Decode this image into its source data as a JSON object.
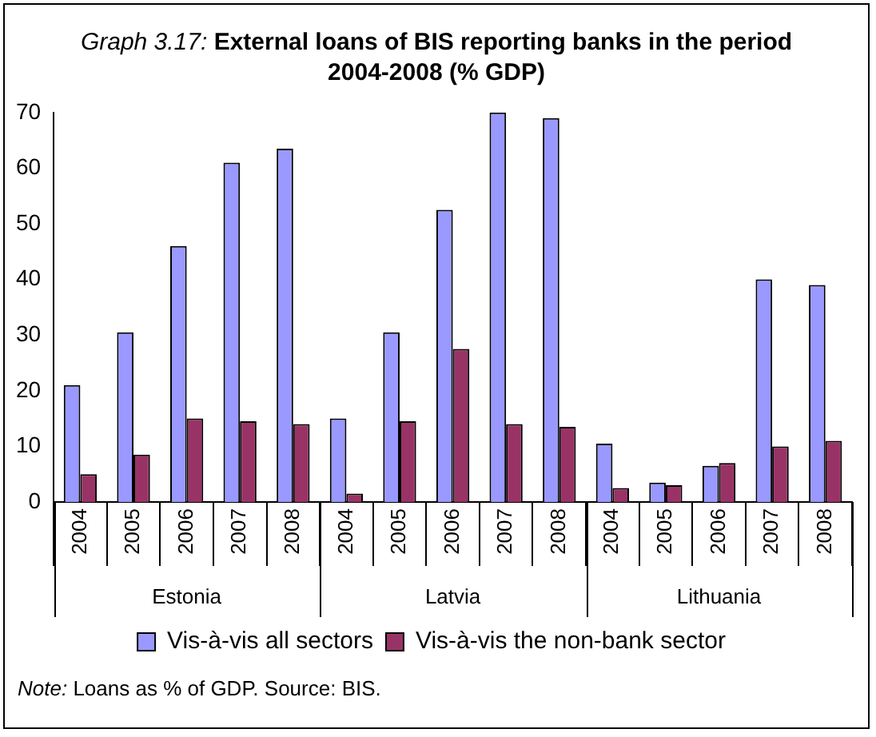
{
  "chart_data": {
    "type": "bar",
    "title": "Graph 3.17: External loans of BIS reporting banks in the period 2004-2008 (% GDP)",
    "categories": [
      "2004",
      "2005",
      "2006",
      "2007",
      "2008",
      "2004",
      "2005",
      "2006",
      "2007",
      "2008",
      "2004",
      "2005",
      "2006",
      "2007",
      "2008"
    ],
    "series": [
      {
        "name": "Vis-à-vis all sectors",
        "color": "#9999ff",
        "values": [
          21,
          30.5,
          46,
          61,
          63.5,
          15,
          30.5,
          52.5,
          70,
          69,
          10.5,
          3.5,
          6.5,
          40,
          39
        ]
      },
      {
        "name": "Vis-à-vis the non-bank sector",
        "color": "#993366",
        "values": [
          5,
          8.5,
          15,
          14.5,
          14,
          1.5,
          14.5,
          27.5,
          14,
          13.5,
          2.5,
          3,
          7,
          10,
          11
        ]
      }
    ],
    "ylim": [
      0,
      70
    ],
    "yticks": [
      0,
      10,
      20,
      30,
      40,
      50,
      60,
      70
    ],
    "grid": false,
    "legend": "bottom",
    "annotations": [
      "Estonia",
      "Latvia",
      "Lithuania",
      "Note: Loans as % of GDP. Source: BIS."
    ]
  }
}
